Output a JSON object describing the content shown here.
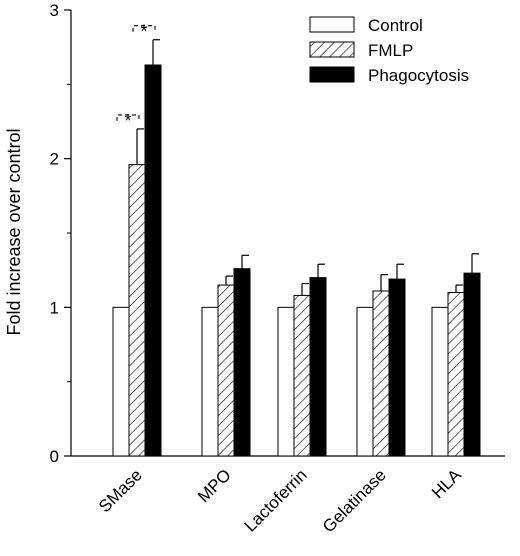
{
  "chart_data": {
    "type": "bar",
    "title": "",
    "xlabel": "",
    "ylabel": "Fold increase over control",
    "ylim": [
      0,
      3
    ],
    "yticks": [
      0,
      1,
      2,
      3
    ],
    "grid": false,
    "legend_position": "top-right",
    "categories": [
      "SMase",
      "MPO",
      "Lactoferrin",
      "Gelatinase",
      "HLA"
    ],
    "series": [
      {
        "name": "Control",
        "pattern": "white",
        "values": [
          1.0,
          1.0,
          1.0,
          1.0,
          1.0
        ],
        "errors": [
          0,
          0,
          0,
          0,
          0
        ]
      },
      {
        "name": "FMLP",
        "pattern": "hatched",
        "values": [
          1.96,
          1.15,
          1.08,
          1.11,
          1.1
        ],
        "errors": [
          0.24,
          0.06,
          0.08,
          0.11,
          0.05
        ]
      },
      {
        "name": "Phagocytosis",
        "pattern": "black",
        "values": [
          2.63,
          1.26,
          1.2,
          1.19,
          1.23
        ],
        "errors": [
          0.17,
          0.09,
          0.09,
          0.1,
          0.13
        ]
      }
    ],
    "annotations": [
      {
        "text": "*",
        "category": "SMase",
        "from_series": 0,
        "to_series": 1
      },
      {
        "text": "*",
        "category": "SMase",
        "from_series": 1,
        "to_series": 2
      }
    ]
  }
}
